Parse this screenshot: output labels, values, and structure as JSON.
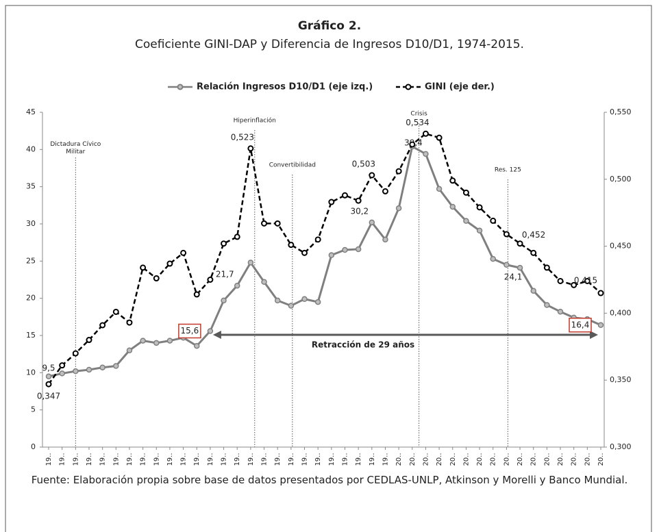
{
  "chart_data": {
    "type": "line",
    "title": "Gráfico 2.",
    "subtitle": "Coeficiente GINI-DAP y Diferencia de Ingresos D10/D1, 1974-2015.",
    "source": "Fuente: Elaboración propia sobre base de datos presentados por CEDLAS-UNLP, Atkinson y Morelli y Banco Mundial.",
    "categories": [
      "19..",
      "19..",
      "19..",
      "19..",
      "19..",
      "19..",
      "19..",
      "19..",
      "19..",
      "19..",
      "19..",
      "19..",
      "19..",
      "19..",
      "19..",
      "19..",
      "19..",
      "19..",
      "19..",
      "19..",
      "19..",
      "19..",
      "19..",
      "19..",
      "19..",
      "19..",
      "20..",
      "20..",
      "20..",
      "20..",
      "20..",
      "20..",
      "20..",
      "20..",
      "20..",
      "20..",
      "20..",
      "20..",
      "20..",
      "20..",
      "20..",
      "20.."
    ],
    "series": [
      {
        "name": "Relación Ingresos D10/D1 (eje izq.)",
        "color": "#7f7f7f",
        "axis": "y",
        "values": [
          9.5,
          9.9,
          10.2,
          10.4,
          10.7,
          10.9,
          13.0,
          14.3,
          14.0,
          14.3,
          14.7,
          13.6,
          15.6,
          19.7,
          21.7,
          24.8,
          22.2,
          19.7,
          19.0,
          19.9,
          19.5,
          25.8,
          26.5,
          26.6,
          30.2,
          27.9,
          32.1,
          40.4,
          39.4,
          34.7,
          32.3,
          30.4,
          29.1,
          25.3,
          24.5,
          24.1,
          21.0,
          19.1,
          18.2,
          17.4,
          17.2,
          16.4
        ],
        "value_labels": [
          "9,5",
          null,
          null,
          null,
          null,
          null,
          null,
          null,
          null,
          null,
          null,
          null,
          "15,6",
          null,
          "21,7",
          null,
          null,
          null,
          null,
          null,
          null,
          null,
          null,
          null,
          "30,2",
          null,
          null,
          null,
          "39,4",
          null,
          null,
          null,
          null,
          null,
          null,
          "24,1",
          null,
          null,
          null,
          null,
          null,
          "16,4"
        ]
      },
      {
        "name": "GINI (eje der.)",
        "color": "#000000",
        "axis": "y2",
        "values": [
          0.347,
          0.361,
          0.37,
          0.38,
          0.391,
          0.401,
          0.393,
          0.434,
          0.426,
          0.437,
          0.445,
          0.414,
          0.425,
          0.452,
          0.457,
          0.523,
          0.467,
          0.467,
          0.451,
          0.445,
          0.455,
          0.483,
          0.488,
          0.484,
          0.503,
          0.491,
          0.506,
          0.526,
          0.534,
          0.531,
          0.499,
          0.49,
          0.479,
          0.469,
          0.459,
          0.452,
          0.445,
          0.434,
          0.424,
          0.421,
          0.424,
          0.415
        ],
        "value_labels": [
          "0,347",
          null,
          null,
          null,
          null,
          null,
          null,
          null,
          null,
          null,
          null,
          null,
          null,
          null,
          null,
          "0,523",
          null,
          null,
          null,
          null,
          null,
          null,
          null,
          null,
          "0,503",
          null,
          null,
          null,
          "0,534",
          null,
          null,
          null,
          null,
          null,
          null,
          "0,452",
          null,
          null,
          null,
          null,
          null,
          "0,415"
        ]
      }
    ],
    "ylim": [
      0,
      45
    ],
    "yticks": [
      0,
      5,
      10,
      15,
      20,
      25,
      30,
      35,
      40,
      45
    ],
    "y2lim": [
      0.3,
      0.55
    ],
    "y2ticks": [
      {
        "value": 0.3,
        "label": "0,300"
      },
      {
        "value": 0.35,
        "label": "0,350"
      },
      {
        "value": 0.4,
        "label": "0,400"
      },
      {
        "value": 0.45,
        "label": "0,450"
      },
      {
        "value": 0.5,
        "label": "0,500"
      },
      {
        "value": 0.55,
        "label": "0,550"
      }
    ],
    "annotations": [
      "Dictadura Cívico Militar",
      "Hiperinflación",
      "Convertibilidad",
      "Crisis",
      "Res. 125"
    ],
    "arrow_label": "Retracción de 29 años",
    "legend": "top"
  }
}
